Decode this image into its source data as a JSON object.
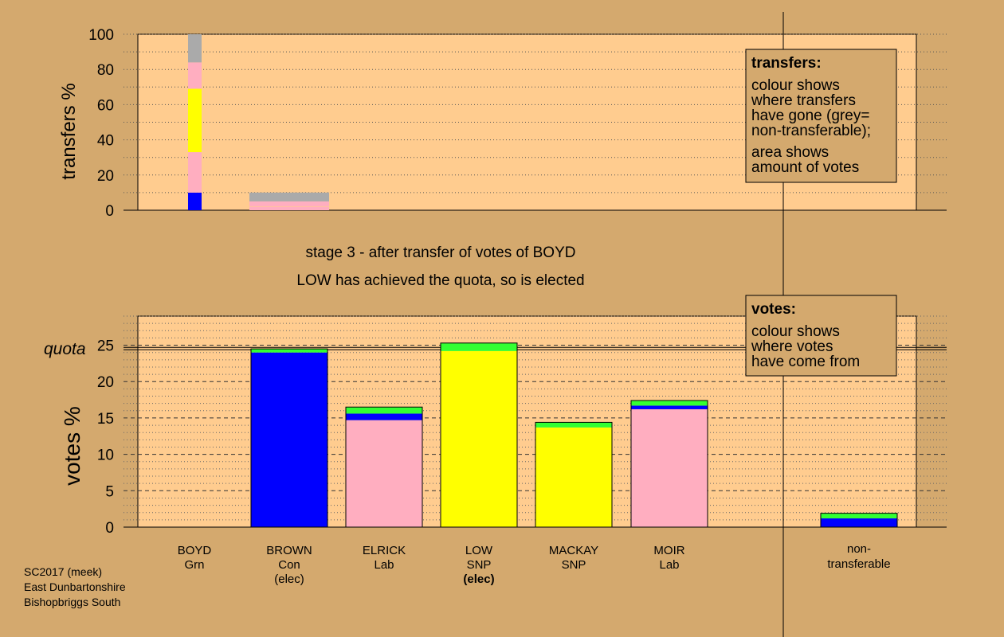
{
  "colors": {
    "background": "#d4a96e",
    "panel": "#ffcc8f",
    "legend_box": "#d4a96e",
    "Con": "#0000ff",
    "Lab": "#ffaec0",
    "SNP": "#ffff00",
    "Grn": "#33ff33",
    "nontransferable": "#aaaaaa"
  },
  "legends": {
    "transfers": {
      "title": "transfers:",
      "lines1": [
        "colour shows",
        "where transfers",
        "have gone (grey=",
        "non-transferable);"
      ],
      "lines2": [
        "area shows",
        "amount of votes"
      ]
    },
    "votes": {
      "title": "votes:",
      "lines": [
        "colour shows",
        "where votes",
        "have come from"
      ]
    }
  },
  "stage_text": {
    "line1": "stage 3 - after transfer of votes of BOYD",
    "line2": "LOW has achieved the quota, so is elected"
  },
  "footer": {
    "line1": "SC2017 (meek)",
    "line2": "East Dunbartonshire",
    "line3": "Bishopbriggs South"
  },
  "chart_data": [
    {
      "type": "bar",
      "ylabel": "transfers %",
      "ylim": [
        0,
        100
      ],
      "yticks": [
        0,
        20,
        40,
        60,
        80,
        100
      ],
      "grid": "dotted, every 10",
      "transfer_source": {
        "candidate": "BOYD",
        "segments": [
          {
            "party": "Con",
            "from": 0,
            "to": 10
          },
          {
            "party": "Lab",
            "from": 10,
            "to": 33
          },
          {
            "party": "SNP",
            "from": 33,
            "to": 69
          },
          {
            "party": "Lab",
            "from": 69,
            "to": 84
          },
          {
            "party": "nontransferable",
            "from": 84,
            "to": 100
          }
        ]
      },
      "previous_transfer": {
        "column": "BROWN",
        "segments": [
          {
            "party": "Lab",
            "from": 0,
            "to": 2
          },
          {
            "party": "Lab",
            "from": 2.3,
            "to": 5
          },
          {
            "party": "nontransferable",
            "from": 5,
            "to": 10
          }
        ]
      }
    },
    {
      "type": "bar",
      "stacked": true,
      "ylabel": "votes %",
      "ylim": [
        0,
        29
      ],
      "yticks": [
        0,
        5,
        10,
        15,
        20,
        25
      ],
      "grid": "dashed every 5, dotted every 1",
      "quota": 24.6,
      "quota_label": "quota",
      "categories": [
        {
          "name": "BOYD",
          "party": "Grn",
          "status": ""
        },
        {
          "name": "BROWN",
          "party": "Con",
          "status": "(elec)"
        },
        {
          "name": "ELRICK",
          "party": "Lab",
          "status": ""
        },
        {
          "name": "LOW",
          "party": "SNP",
          "status": "(elec)"
        },
        {
          "name": "MACKAY",
          "party": "SNP",
          "status": ""
        },
        {
          "name": "MOIR",
          "party": "Lab",
          "status": ""
        }
      ],
      "nontransferable_label": [
        "non-",
        "transferable"
      ],
      "bars": [
        [],
        [
          {
            "party": "Con",
            "value": 24.0
          },
          {
            "party": "Grn",
            "value": 0.5
          }
        ],
        [
          {
            "party": "Lab",
            "value": 14.7
          },
          {
            "party": "Con",
            "value": 0.9
          },
          {
            "party": "Grn",
            "value": 0.9
          }
        ],
        [
          {
            "party": "SNP",
            "value": 24.2
          },
          {
            "party": "Grn",
            "value": 1.1
          }
        ],
        [
          {
            "party": "SNP",
            "value": 13.7
          },
          {
            "party": "Grn",
            "value": 0.7
          }
        ],
        [
          {
            "party": "Lab",
            "value": 16.2
          },
          {
            "party": "Con",
            "value": 0.5
          },
          {
            "party": "Grn",
            "value": 0.7
          }
        ]
      ],
      "nontransferable_bar": [
        {
          "party": "Con",
          "value": 1.2
        },
        {
          "party": "Grn",
          "value": 0.7
        }
      ]
    }
  ]
}
